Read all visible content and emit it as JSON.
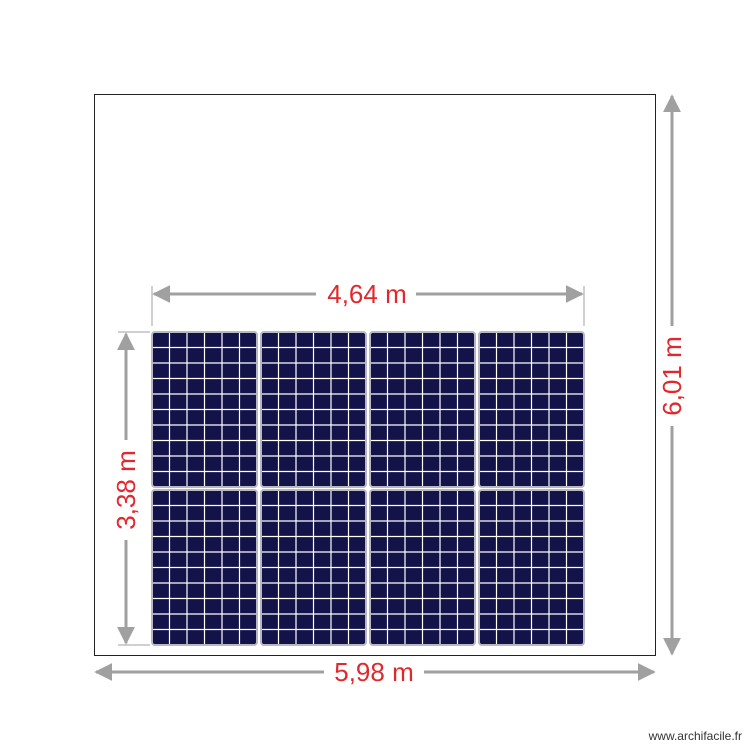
{
  "dimensions": {
    "total_width": "5,98 m",
    "total_height": "6,01 m",
    "array_width": "4,64 m",
    "array_height": "3,38 m"
  },
  "panels": {
    "rows": 2,
    "columns": 4,
    "cell_columns": 6,
    "cell_rows": 10
  },
  "colors": {
    "dimension_text": "#e0282e",
    "arrow": "#a0a0a0",
    "panel": "#13134a",
    "panel_frame": "#b8b8c4"
  },
  "watermark": "www.archifacile.fr"
}
